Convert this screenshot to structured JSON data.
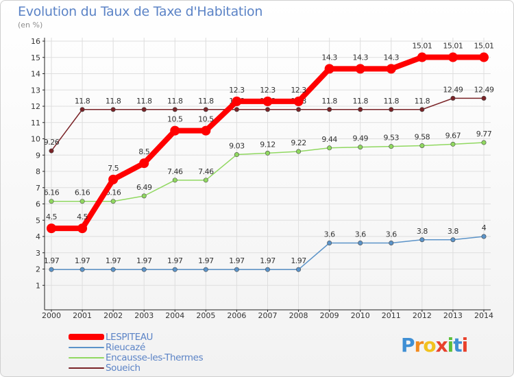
{
  "title": "Evolution du Taux de Taxe d'Habitation",
  "subtitle": "(en %)",
  "logo_text": "Proxiti",
  "chart_data": {
    "type": "line",
    "x": [
      2000,
      2001,
      2002,
      2003,
      2004,
      2005,
      2006,
      2007,
      2008,
      2009,
      2010,
      2011,
      2012,
      2013,
      2014
    ],
    "ylim": [
      0,
      16
    ],
    "yticks": [
      1,
      2,
      3,
      4,
      5,
      6,
      7,
      8,
      9,
      10,
      11,
      12,
      13,
      14,
      15,
      16
    ],
    "grid": true,
    "legend_position": "bottom-left",
    "series": [
      {
        "name": "Soueich",
        "color": "#7a2327",
        "values": [
          9.26,
          11.8,
          11.8,
          11.8,
          11.8,
          11.8,
          11.8,
          11.8,
          11.8,
          11.8,
          11.8,
          11.8,
          11.8,
          12.49,
          12.49
        ],
        "labels": [
          "9.26",
          "11.8",
          "11.8",
          "11.8",
          "11.8",
          "11.8",
          "11.8",
          "11.8",
          "11.8",
          "11.8",
          "11.8",
          "11.8",
          "11.8",
          "12.49",
          "12.49"
        ]
      },
      {
        "name": "Encausse-les-Thermes",
        "color": "#90d860",
        "values": [
          6.16,
          6.16,
          6.16,
          6.49,
          7.46,
          7.46,
          9.03,
          9.12,
          9.22,
          9.44,
          9.49,
          9.53,
          9.58,
          9.67,
          9.77
        ],
        "labels": [
          "6.16",
          "6.16",
          "6.16",
          "6.49",
          "7.46",
          "7.46",
          "9.03",
          "9.12",
          "9.22",
          "9.44",
          "9.49",
          "9.53",
          "9.58",
          "9.67",
          "9.77"
        ]
      },
      {
        "name": "Rieucazé",
        "color": "#5b93c8",
        "values": [
          1.97,
          1.97,
          1.97,
          1.97,
          1.97,
          1.97,
          1.97,
          1.97,
          1.97,
          3.6,
          3.6,
          3.6,
          3.8,
          3.8,
          4
        ],
        "labels": [
          "1.97",
          "1.97",
          "1.97",
          "1.97",
          "1.97",
          "1.97",
          "1.97",
          "1.97",
          "1.97",
          "3.6",
          "3.6",
          "3.6",
          "3.8",
          "3.8",
          "4"
        ]
      },
      {
        "name": "LESPITEAU",
        "color": "#ff0000",
        "values": [
          4.5,
          4.5,
          7.5,
          8.5,
          10.5,
          10.5,
          12.3,
          12.3,
          12.3,
          14.3,
          14.3,
          14.3,
          15.01,
          15.01,
          15.01
        ],
        "labels": [
          "4.5",
          "4.5",
          "7.5",
          "8.5",
          "10.5",
          "10.5",
          "12.3",
          "12.3",
          "12.3",
          "14.3",
          "14.3",
          "14.3",
          "15.01",
          "15.01",
          "15.01"
        ]
      }
    ],
    "legend": [
      "LESPITEAU",
      "Rieucazé",
      "Encausse-les-Thermes",
      "Soueich"
    ]
  }
}
